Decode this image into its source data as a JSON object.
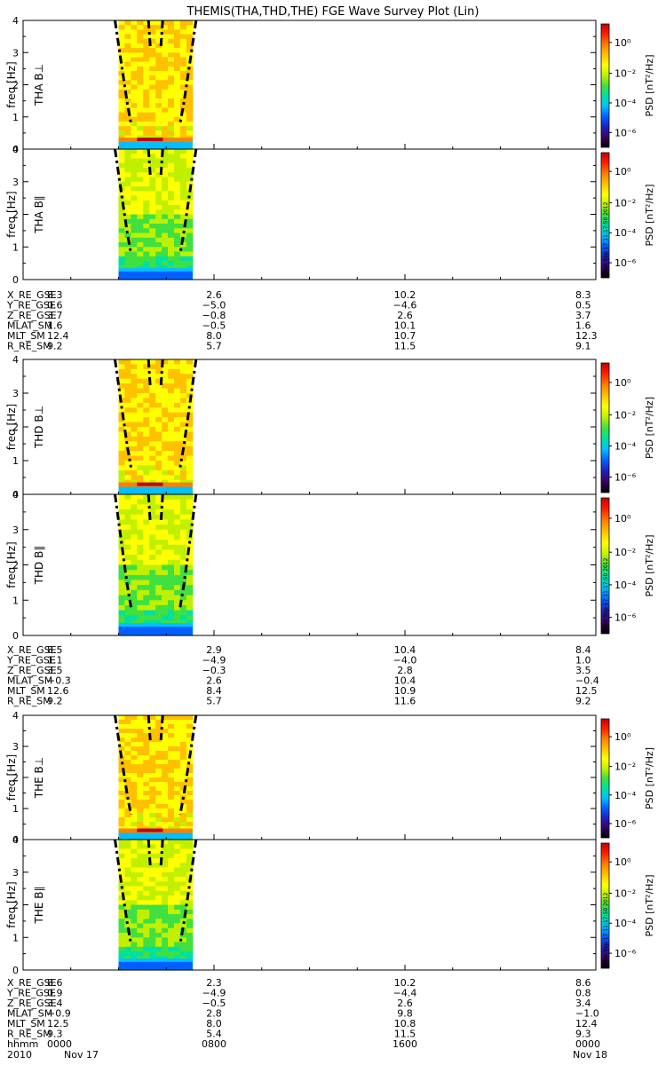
{
  "title": "THEMIS(THA,THD,THE) FGE Wave Survey Plot (Lin)",
  "colorbar": {
    "label": "PSD [nT²/Hz]",
    "ticks": [
      "10⁰",
      "10⁻²",
      "10⁻⁴",
      "10⁻⁶"
    ],
    "stamp": "Mon Sep 17 11:17:50 2012"
  },
  "colors": {
    "colormap": [
      "#000000",
      "#3a0060",
      "#2020c0",
      "#0060ff",
      "#00c0ff",
      "#00e0a0",
      "#40e040",
      "#c0f000",
      "#ffff00",
      "#ffc000",
      "#ff8000",
      "#ff2000",
      "#c00000"
    ]
  },
  "chart_data": {
    "type": "heatmap",
    "ylabel": "freq [Hz]",
    "yticks": [
      "0",
      "1",
      "2",
      "3",
      "4"
    ],
    "ylim": [
      0,
      4
    ],
    "xlim_hours": [
      0,
      24
    ],
    "data_interval_hours": [
      4.0,
      7.1
    ],
    "probes": [
      {
        "id": "THA",
        "panels": [
          "THA B⊥",
          "THA B∥"
        ],
        "ephemeris": [
          {
            "name": "X_RE_GSE",
            "values": [
              "8.3",
              "2.6",
              "10.2",
              "8.3"
            ]
          },
          {
            "name": "Y_RE_GSE",
            "values": [
              "0.6",
              "−5.0",
              "−4.6",
              "0.5"
            ]
          },
          {
            "name": "Z_RE_GSE",
            "values": [
              "3.7",
              "−0.8",
              "2.6",
              "3.7"
            ]
          },
          {
            "name": "MLAT_SM",
            "values": [
              "1.6",
              "−0.5",
              "10.1",
              "1.6"
            ]
          },
          {
            "name": "MLT_SM",
            "values": [
              "12.4",
              "8.0",
              "10.7",
              "12.3"
            ]
          },
          {
            "name": "R_RE_SM",
            "values": [
              "9.2",
              "5.7",
              "11.5",
              "9.1"
            ]
          }
        ]
      },
      {
        "id": "THD",
        "panels": [
          "THD B⊥",
          "THD B∥"
        ],
        "ephemeris": [
          {
            "name": "X_RE_GSE",
            "values": [
              "8.5",
              "2.9",
              "10.4",
              "8.4"
            ]
          },
          {
            "name": "Y_RE_GSE",
            "values": [
              "1.1",
              "−4.9",
              "−4.0",
              "1.0"
            ]
          },
          {
            "name": "Z_RE_GSE",
            "values": [
              "3.5",
              "−0.3",
              "2.8",
              "3.5"
            ]
          },
          {
            "name": "MLAT_SM",
            "values": [
              "−0.3",
              "2.6",
              "10.4",
              "−0.4"
            ]
          },
          {
            "name": "MLT_SM",
            "values": [
              "12.6",
              "8.4",
              "10.9",
              "12.5"
            ]
          },
          {
            "name": "R_RE_SM",
            "values": [
              "9.2",
              "5.7",
              "11.6",
              "9.2"
            ]
          }
        ]
      },
      {
        "id": "THE",
        "panels": [
          "THE B⊥",
          "THE B∥"
        ],
        "ephemeris": [
          {
            "name": "X_RE_GSE",
            "values": [
              "8.6",
              "2.3",
              "10.2",
              "8.6"
            ]
          },
          {
            "name": "Y_RE_GSE",
            "values": [
              "0.9",
              "−4.9",
              "−4.4",
              "0.8"
            ]
          },
          {
            "name": "Z_RE_GSE",
            "values": [
              "3.4",
              "−0.5",
              "2.6",
              "3.4"
            ]
          },
          {
            "name": "MLAT_SM",
            "values": [
              "−0.9",
              "2.8",
              "9.8",
              "−1.0"
            ]
          },
          {
            "name": "MLT_SM",
            "values": [
              "12.5",
              "8.0",
              "10.8",
              "12.4"
            ]
          },
          {
            "name": "R_RE_SM",
            "values": [
              "9.3",
              "5.4",
              "11.5",
              "9.3"
            ]
          }
        ],
        "time_axis": {
          "row1": [
            "hhmm",
            "0000",
            "0800",
            "1600",
            "0000"
          ],
          "row2": [
            "2010",
            "Nov 17",
            "",
            "",
            "Nov 18"
          ]
        }
      }
    ]
  }
}
